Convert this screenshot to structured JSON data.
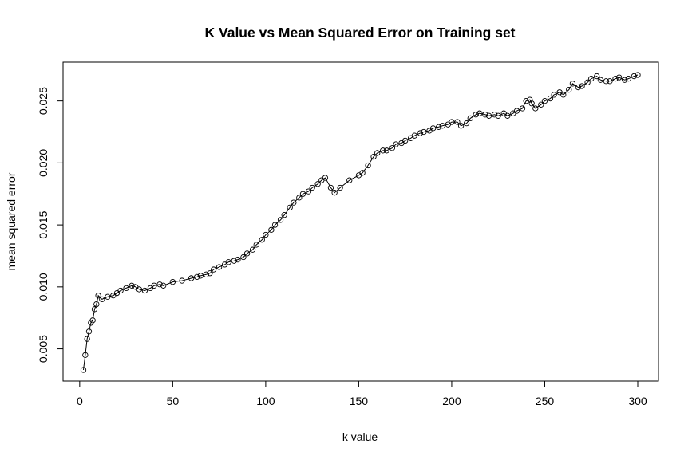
{
  "chart_data": {
    "type": "line",
    "title": "K Value vs Mean Squared Error on Training set",
    "xlabel": "k value",
    "ylabel": "mean squared error",
    "xlim": [
      2,
      300
    ],
    "ylim": [
      0.0033,
      0.0271
    ],
    "xticks": [
      0,
      50,
      100,
      150,
      200,
      250,
      300
    ],
    "yticks": [
      0.005,
      0.01,
      0.015,
      0.02,
      0.025
    ],
    "xtick_labels": [
      "0",
      "50",
      "100",
      "150",
      "200",
      "250",
      "300"
    ],
    "ytick_labels": [
      "0.005",
      "0.010",
      "0.015",
      "0.020",
      "0.025"
    ],
    "grid": false,
    "markers": "open-circle",
    "series": [
      {
        "x": [
          2,
          3,
          4,
          5,
          6,
          7,
          8,
          9,
          10,
          12,
          15,
          18,
          20,
          22,
          25,
          28,
          30,
          32,
          35,
          38,
          40,
          43,
          45,
          50,
          55,
          60,
          63,
          65,
          68,
          70,
          72,
          75,
          78,
          80,
          83,
          85,
          88,
          90,
          93,
          95,
          98,
          100,
          103,
          105,
          108,
          110,
          113,
          115,
          118,
          120,
          123,
          125,
          128,
          130,
          132,
          135,
          137,
          140,
          145,
          150,
          152,
          155,
          158,
          160,
          163,
          165,
          168,
          170,
          173,
          175,
          178,
          180,
          183,
          185,
          188,
          190,
          193,
          195,
          198,
          200,
          203,
          205,
          208,
          210,
          213,
          215,
          218,
          220,
          223,
          225,
          228,
          230,
          233,
          235,
          238,
          240,
          242,
          243,
          245,
          248,
          250,
          253,
          255,
          258,
          260,
          263,
          265,
          268,
          270,
          273,
          275,
          278,
          280,
          283,
          285,
          288,
          290,
          293,
          295,
          298,
          300
        ],
        "y": [
          0.0033,
          0.0045,
          0.0058,
          0.0064,
          0.0071,
          0.0073,
          0.0082,
          0.0086,
          0.0093,
          0.009,
          0.0092,
          0.0093,
          0.0095,
          0.0097,
          0.0099,
          0.0101,
          0.01,
          0.0098,
          0.0097,
          0.0099,
          0.0101,
          0.0102,
          0.0101,
          0.0104,
          0.0105,
          0.0107,
          0.0108,
          0.0109,
          0.011,
          0.0111,
          0.0114,
          0.0116,
          0.0118,
          0.012,
          0.0121,
          0.0122,
          0.0124,
          0.0127,
          0.013,
          0.0134,
          0.0138,
          0.0142,
          0.0146,
          0.015,
          0.0154,
          0.0158,
          0.0164,
          0.0168,
          0.0172,
          0.0175,
          0.0177,
          0.018,
          0.0183,
          0.0186,
          0.0188,
          0.018,
          0.0176,
          0.018,
          0.0186,
          0.019,
          0.0192,
          0.0198,
          0.0205,
          0.0208,
          0.021,
          0.021,
          0.0212,
          0.0215,
          0.0216,
          0.0218,
          0.022,
          0.0222,
          0.0224,
          0.0225,
          0.0226,
          0.0228,
          0.0229,
          0.023,
          0.0231,
          0.0233,
          0.0233,
          0.023,
          0.0232,
          0.0236,
          0.0239,
          0.024,
          0.0239,
          0.0238,
          0.0239,
          0.0238,
          0.024,
          0.0238,
          0.024,
          0.0242,
          0.0244,
          0.025,
          0.0251,
          0.0248,
          0.0244,
          0.0247,
          0.025,
          0.0252,
          0.0255,
          0.0257,
          0.0255,
          0.0259,
          0.0264,
          0.0261,
          0.0262,
          0.0265,
          0.0268,
          0.027,
          0.0267,
          0.0266,
          0.0266,
          0.0268,
          0.0269,
          0.0267,
          0.0268,
          0.027,
          0.0271
        ]
      }
    ]
  }
}
